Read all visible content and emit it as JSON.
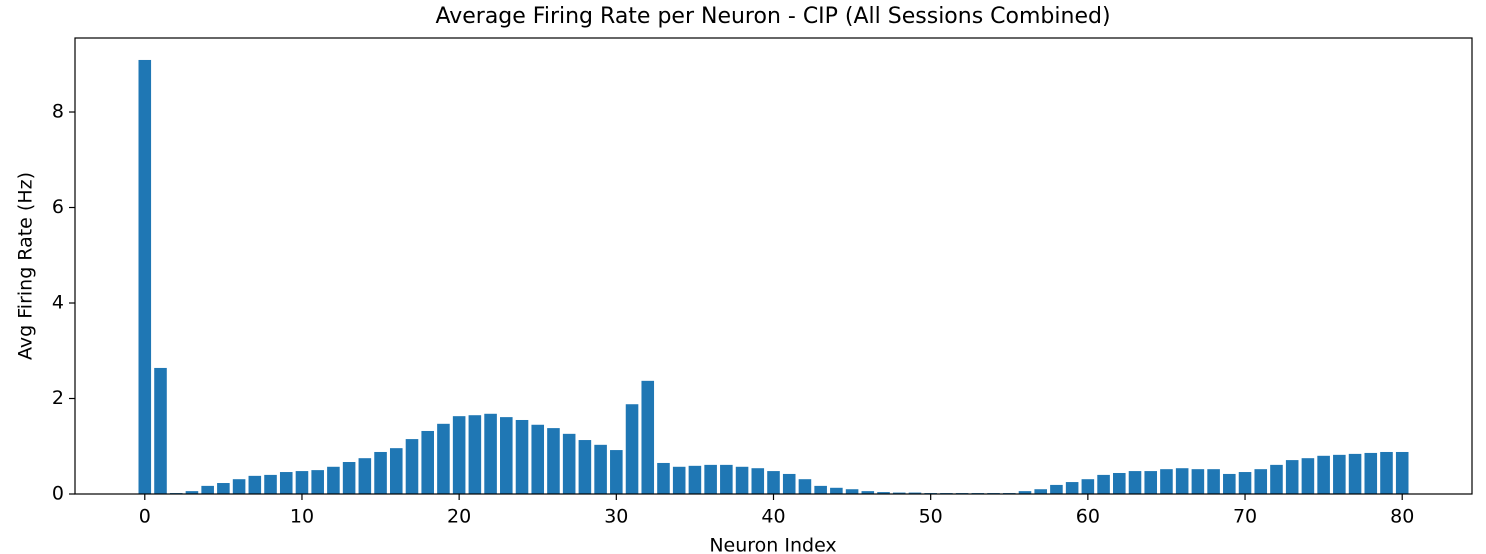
{
  "chart_data": {
    "type": "bar",
    "title": "Average Firing Rate per Neuron - CIP (All Sessions Combined)",
    "x_label": "Neuron Index",
    "y_label": "Avg Firing Rate (Hz)",
    "color": "#1f77b4",
    "x": [
      0,
      1,
      2,
      3,
      4,
      5,
      6,
      7,
      8,
      9,
      10,
      11,
      12,
      13,
      14,
      15,
      16,
      17,
      18,
      19,
      20,
      21,
      22,
      23,
      24,
      25,
      26,
      27,
      28,
      29,
      30,
      31,
      32,
      33,
      34,
      35,
      36,
      37,
      38,
      39,
      40,
      41,
      42,
      43,
      44,
      45,
      46,
      47,
      48,
      49,
      50,
      51,
      52,
      53,
      54,
      55,
      56,
      57,
      58,
      59,
      60,
      61,
      62,
      63,
      64,
      65,
      66,
      67,
      68,
      69,
      70,
      71,
      72,
      73,
      74,
      75,
      76,
      77,
      78,
      79,
      80
    ],
    "values": [
      9.09,
      2.64,
      0.02,
      0.06,
      0.17,
      0.23,
      0.31,
      0.38,
      0.4,
      0.46,
      0.48,
      0.5,
      0.57,
      0.67,
      0.75,
      0.88,
      0.96,
      1.15,
      1.32,
      1.47,
      1.63,
      1.65,
      1.68,
      1.61,
      1.55,
      1.45,
      1.38,
      1.26,
      1.13,
      1.03,
      0.92,
      1.88,
      2.37,
      0.65,
      0.57,
      0.59,
      0.61,
      0.61,
      0.57,
      0.54,
      0.48,
      0.42,
      0.31,
      0.17,
      0.13,
      0.1,
      0.06,
      0.04,
      0.03,
      0.03,
      0.02,
      0.02,
      0.02,
      0.02,
      0.02,
      0.02,
      0.06,
      0.1,
      0.19,
      0.25,
      0.31,
      0.4,
      0.44,
      0.48,
      0.48,
      0.52,
      0.54,
      0.52,
      0.52,
      0.42,
      0.46,
      0.52,
      0.61,
      0.71,
      0.75,
      0.8,
      0.82,
      0.84,
      0.86,
      0.88,
      0.88
    ],
    "bar_width": 0.8,
    "xlim": [
      -4.44,
      84.44
    ],
    "xticks": [
      0,
      10,
      20,
      30,
      40,
      50,
      60,
      70,
      80
    ],
    "ylim": [
      0,
      9.55
    ],
    "yticks": [
      0,
      2,
      4,
      6,
      8
    ],
    "grid": false
  }
}
